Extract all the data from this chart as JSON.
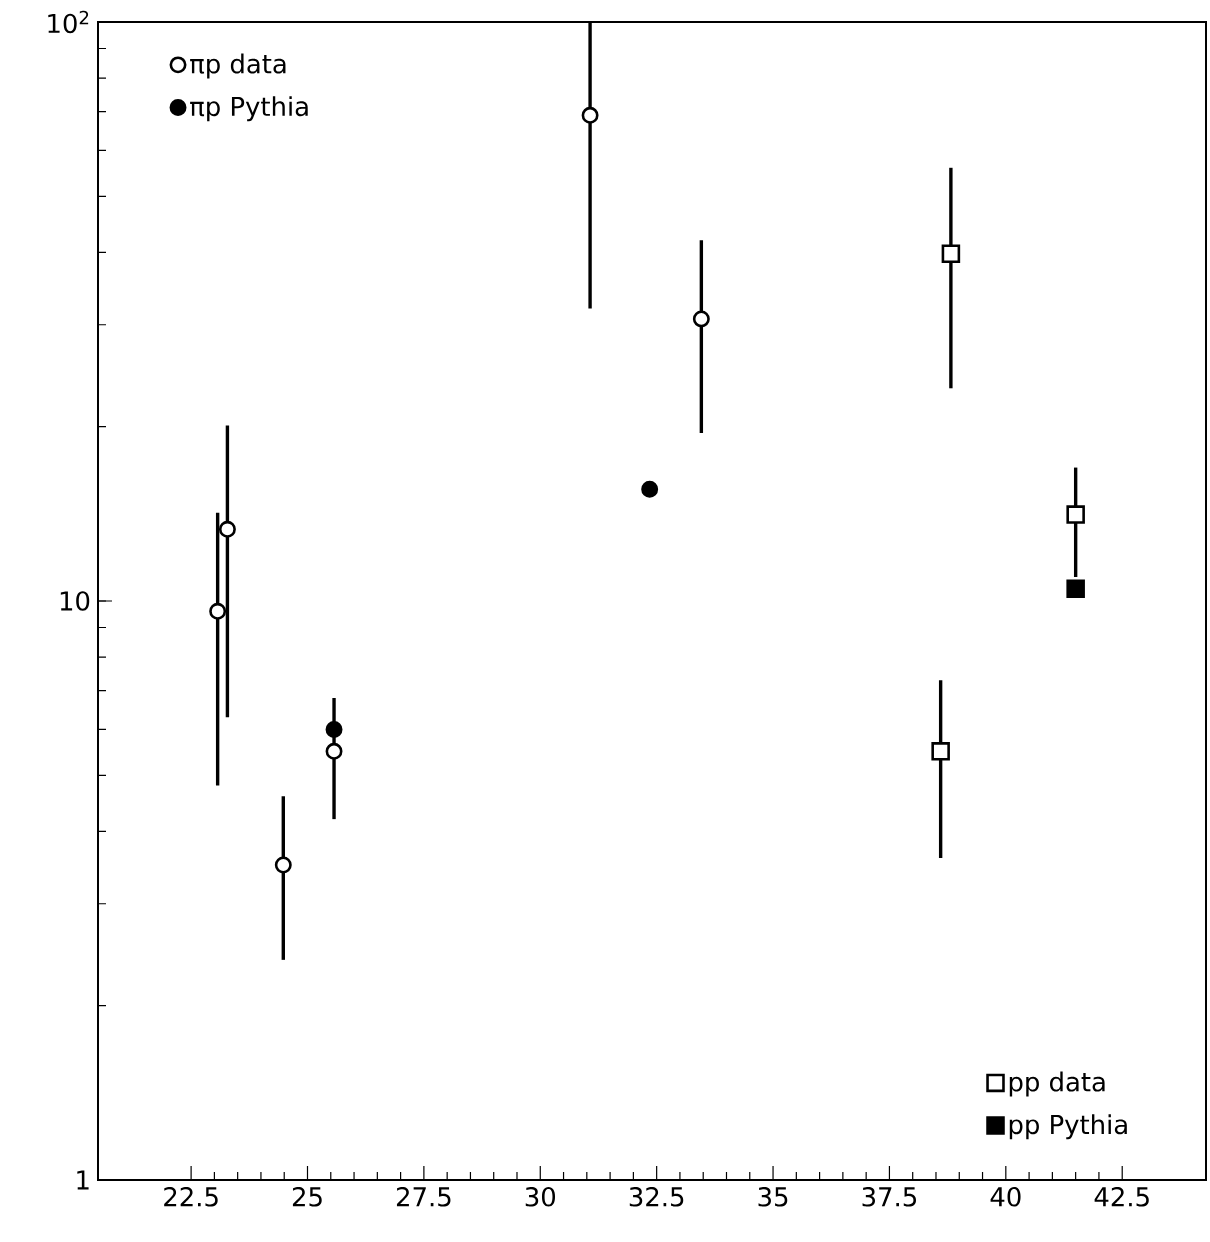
{
  "chart_data": {
    "type": "scatter",
    "log": "y",
    "xlim": [
      20.5,
      44.3
    ],
    "ylim": [
      1,
      100
    ],
    "xticks": [
      22.5,
      25,
      27.5,
      30,
      32.5,
      35,
      37.5,
      40,
      42.5
    ],
    "yticks": [
      1,
      10,
      {
        "value": 100,
        "label": "10$^{2}$"
      }
    ],
    "grid": false,
    "legend": "top left",
    "series": [
      {
        "name": "πp data",
        "color": "#000000",
        "marker": "circle",
        "x": [
          23.07,
          23.28,
          24.48,
          25.57,
          31.07,
          33.46
        ],
        "values": [
          9.6,
          13.3,
          3.5,
          5.5,
          69,
          30.7
        ],
        "errors": [
          [
            4.8,
            14.2
          ],
          [
            6.3,
            20.1
          ],
          [
            2.4,
            4.6
          ],
          [
            4.2,
            6.8
          ],
          [
            32,
            100
          ],
          [
            19.5,
            42
          ]
        ]
      },
      {
        "name": "πp Pythia",
        "color": "#000000",
        "marker": "circle",
        "x": [
          25.57,
          32.35
        ],
        "values": [
          6.0,
          15.6
        ]
      },
      {
        "name": "pp data",
        "color": "#000000",
        "marker": "square",
        "x": [
          38.82,
          38.6,
          41.5
        ],
        "values": [
          39.8,
          5.5,
          14.1
        ],
        "errors": [
          [
            23.3,
            56
          ],
          [
            3.6,
            7.3
          ],
          [
            11,
            17
          ]
        ]
      },
      {
        "name": "pp Pythia",
        "color": "#000000",
        "marker": "square",
        "x": [
          41.5
        ],
        "values": [
          10.5
        ]
      }
    ]
  }
}
